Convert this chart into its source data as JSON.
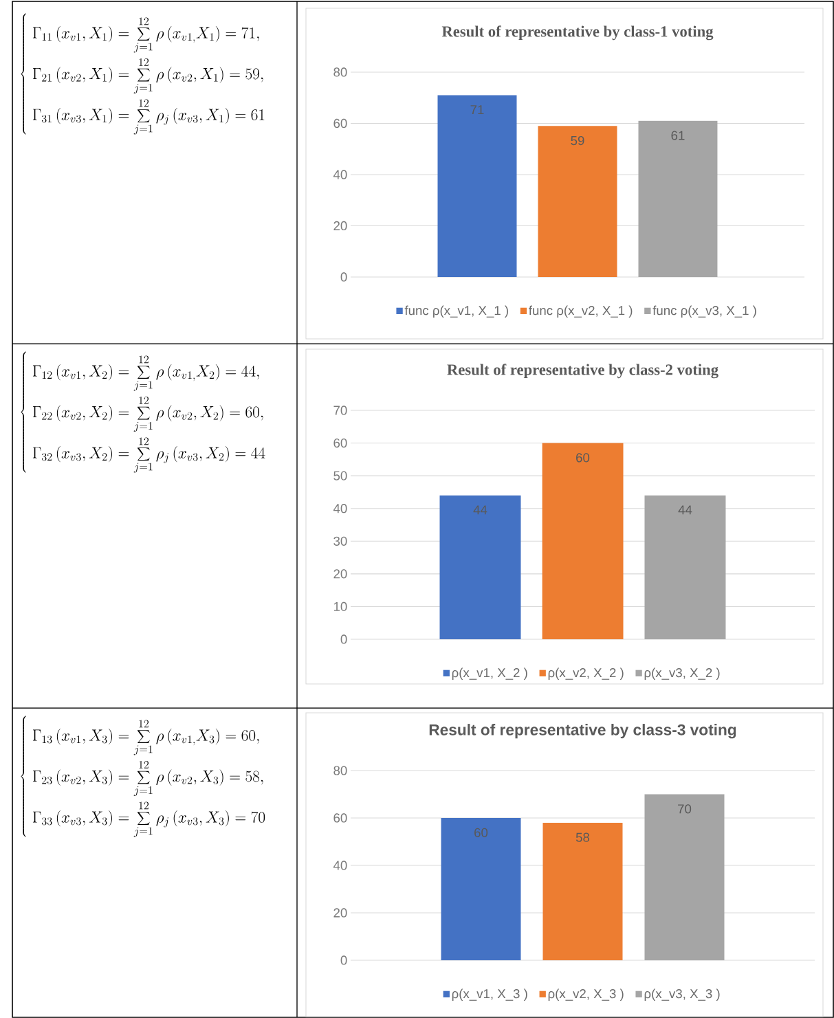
{
  "chart_data": [
    {
      "type": "bar",
      "title": "Result of representative by class-1 voting",
      "categories": [
        null
      ],
      "series": [
        {
          "name": "func ρ(x_v1, X_1 )",
          "color": "#4472c4",
          "values": [
            71
          ]
        },
        {
          "name": "func ρ(x_v2, X_1 )",
          "color": "#ed7d31",
          "values": [
            59
          ]
        },
        {
          "name": "func ρ(x_v3, X_1 )",
          "color": "#a5a5a5",
          "values": [
            61
          ]
        }
      ],
      "ylim": [
        0,
        80
      ],
      "yticks": [
        0,
        20,
        40,
        60,
        80
      ],
      "grid": "y",
      "legend": "bottom",
      "data_labels": true,
      "annotations": [
        "\\left\\{\\begin{array}{l}\\displaystyle\\Gamma_{11}\\left(x_{v1},X_1\\right)=\\sum_{j=1}^{12}\\rho\\left(x_{v1,}X_1\\right)=71,\\\\[4pt]\\displaystyle\\Gamma_{21}\\left(x_{v2},X_1\\right)=\\sum_{j=1}^{12}\\rho\\left(x_{v2},X_1\\right)=59,\\\\[4pt]\\displaystyle\\Gamma_{31}\\left(x_{v3},X_1\\right)=\\sum_{j=1}^{12}\\rho_j\\left(x_{v3},X_1\\right)=61\\end{array}\\right."
      ]
    },
    {
      "type": "bar",
      "title": "Result of representative by class-2 voting",
      "categories": [
        null
      ],
      "series": [
        {
          "name": "ρ(x_v1, X_2 )",
          "color": "#4472c4",
          "values": [
            44
          ]
        },
        {
          "name": "ρ(x_v2, X_2 )",
          "color": "#ed7d31",
          "values": [
            60
          ]
        },
        {
          "name": "ρ(x_v3, X_2 )",
          "color": "#a5a5a5",
          "values": [
            44
          ]
        }
      ],
      "ylim": [
        0,
        70
      ],
      "yticks": [
        0,
        10,
        20,
        30,
        40,
        50,
        60,
        70
      ],
      "grid": "y",
      "legend": "bottom",
      "data_labels": true,
      "annotations": [
        "\\left\\{\\begin{array}{l}\\displaystyle\\Gamma_{12}\\left(x_{v1},X_2\\right)=\\sum_{j=1}^{12}\\rho\\left(x_{v1,}X_2\\right)=44,\\\\[4pt]\\displaystyle\\Gamma_{22}\\left(x_{v2},X_2\\right)=\\sum_{j=1}^{12}\\rho\\left(x_{v2},X_2\\right)=60,\\\\[4pt]\\displaystyle\\Gamma_{32}\\left(x_{v3},X_2\\right)=\\sum_{j=1}^{12}\\rho_j\\left(x_{v3},X_2\\right)=44\\end{array}\\right."
      ]
    },
    {
      "type": "bar",
      "title": "Result of representative by class-3 voting",
      "categories": [
        null
      ],
      "series": [
        {
          "name": "ρ(x_v1, X_3 )",
          "color": "#4472c4",
          "values": [
            60
          ]
        },
        {
          "name": "ρ(x_v2, X_3 )",
          "color": "#ed7d31",
          "values": [
            58
          ]
        },
        {
          "name": "ρ(x_v3, X_3 )",
          "color": "#a5a5a5",
          "values": [
            70
          ]
        }
      ],
      "ylim": [
        0,
        80
      ],
      "yticks": [
        0,
        20,
        40,
        60,
        80
      ],
      "grid": "y",
      "legend": "bottom",
      "data_labels": true,
      "annotations": [
        "\\left\\{\\begin{array}{l}\\displaystyle\\Gamma_{13}\\left(x_{v1},X_3\\right)=\\sum_{j=1}^{12}\\rho\\left(x_{v1,}X_3\\right)=60,\\\\[4pt]\\displaystyle\\Gamma_{23}\\left(x_{v2},X_3\\right)=\\sum_{j=1}^{12}\\rho\\left(x_{v2},X_3\\right)=58,\\\\[4pt]\\displaystyle\\Gamma_{33}\\left(x_{v3},X_3\\right)=\\sum_{j=1}^{12}\\rho_j\\left(x_{v3},X_3\\right)=70\\end{array}\\right."
      ]
    }
  ]
}
